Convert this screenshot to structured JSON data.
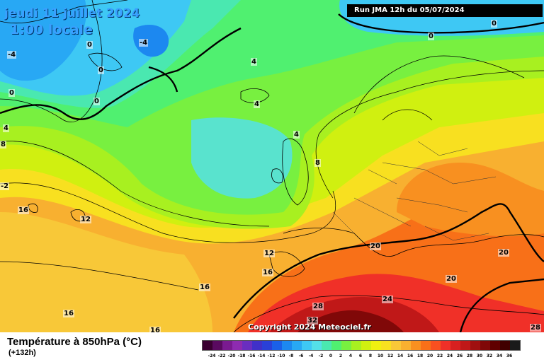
{
  "header": {
    "valid_date": "jeudi 11 juillet 2024",
    "valid_time": "1:00 locale",
    "run": "Run JMA 12h du 05/07/2024"
  },
  "footer": {
    "title": "Température à 850hPa (°C)",
    "lead": "(+132h)",
    "copyright": "Copyright 2024 Meteociel.fr"
  },
  "legend": {
    "ticks": [
      "-24",
      "-22",
      "-20",
      "-18",
      "-16",
      "-14",
      "-12",
      "-10",
      "-8",
      "-6",
      "-4",
      "-2",
      "0",
      "2",
      "4",
      "6",
      "8",
      "10",
      "12",
      "14",
      "16",
      "18",
      "20",
      "22",
      "24",
      "26",
      "28",
      "30",
      "32",
      "34",
      "36"
    ],
    "colors": [
      "#3a0030",
      "#5a0a60",
      "#7a1a90",
      "#8e2bb0",
      "#6a2ec0",
      "#4030c8",
      "#2a40d8",
      "#1a60e8",
      "#1c88f0",
      "#28a8f4",
      "#3ec8f4",
      "#54e0e8",
      "#4ae8b0",
      "#50f070",
      "#78f040",
      "#a8f020",
      "#d0f010",
      "#f0f010",
      "#f8e020",
      "#f8c838",
      "#f8b030",
      "#f89020",
      "#f87018",
      "#f85020",
      "#f03028",
      "#d82020",
      "#c01818",
      "#a01010",
      "#800808",
      "#600000",
      "#400000",
      "#1a1a1a"
    ]
  },
  "contour_labels": [
    {
      "id": "l1",
      "text": "-4"
    },
    {
      "id": "l2",
      "text": "-4"
    },
    {
      "id": "l3",
      "text": "0"
    },
    {
      "id": "l4",
      "text": "0"
    },
    {
      "id": "l5",
      "text": "0"
    },
    {
      "id": "l6",
      "text": "0"
    },
    {
      "id": "l7",
      "text": "0"
    },
    {
      "id": "l8",
      "text": "0"
    },
    {
      "id": "l9",
      "text": "4"
    },
    {
      "id": "l10",
      "text": "4"
    },
    {
      "id": "l11",
      "text": "4"
    },
    {
      "id": "l12",
      "text": "4"
    },
    {
      "id": "l13",
      "text": "8"
    },
    {
      "id": "l14",
      "text": "8"
    },
    {
      "id": "l15",
      "text": "12"
    },
    {
      "id": "l16",
      "text": "12"
    },
    {
      "id": "l17",
      "text": "16"
    },
    {
      "id": "l18",
      "text": "16"
    },
    {
      "id": "l19",
      "text": "16"
    },
    {
      "id": "l20",
      "text": "16"
    },
    {
      "id": "l21",
      "text": "16"
    },
    {
      "id": "l22",
      "text": "20"
    },
    {
      "id": "l23",
      "text": "20"
    },
    {
      "id": "l24",
      "text": "20"
    },
    {
      "id": "l25",
      "text": "24"
    },
    {
      "id": "l26",
      "text": "28"
    },
    {
      "id": "l27",
      "text": "28"
    },
    {
      "id": "l28",
      "text": "32"
    },
    {
      "id": "l29",
      "text": "-2"
    }
  ]
}
